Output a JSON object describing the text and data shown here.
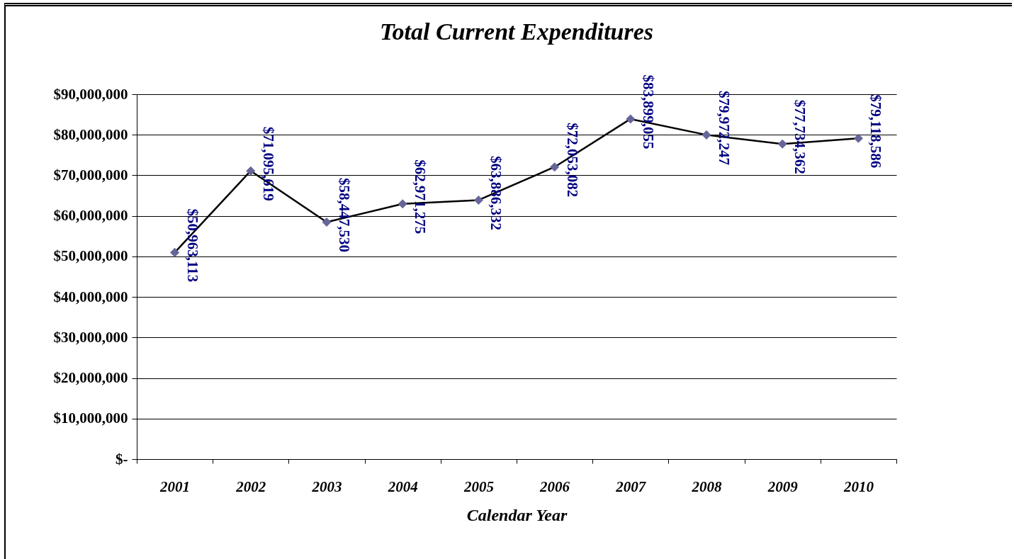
{
  "chart_data": {
    "type": "line",
    "title": "Total Current Expenditures",
    "xlabel": "Calendar Year",
    "categories": [
      "2001",
      "2002",
      "2003",
      "2004",
      "2005",
      "2006",
      "2007",
      "2008",
      "2009",
      "2010"
    ],
    "series": [
      {
        "color": "#000000",
        "colors": [
          "#666699",
          "#666699",
          "#666699",
          "#666699",
          "#666699",
          "#666699",
          "#666699",
          "#666699",
          "#666699",
          "#666699"
        ],
        "values": [
          50963113,
          71095619,
          58447530,
          62971275,
          63886332,
          72053082,
          83899055,
          79972247,
          77734362,
          79118586
        ],
        "value_labels": [
          "$50,963,113",
          "$71,095,619",
          "$58,447,530",
          "$62,971,275",
          "$63,886,332",
          "$72,053,082",
          "$83,899,055",
          "$79,972,247",
          "$77,734,362",
          "$79,118,586"
        ]
      }
    ],
    "ylim": [
      0,
      90000000
    ],
    "yticks": [
      {
        "value": 0,
        "label": "$-"
      },
      {
        "value": 10000000,
        "label": "$10,000,000"
      },
      {
        "value": 20000000,
        "label": "$20,000,000"
      },
      {
        "value": 30000000,
        "label": "$30,000,000"
      },
      {
        "value": 40000000,
        "label": "$40,000,000"
      },
      {
        "value": 50000000,
        "label": "$50,000,000"
      },
      {
        "value": 60000000,
        "label": "$60,000,000"
      },
      {
        "value": 70000000,
        "label": "$70,000,000"
      },
      {
        "value": 80000000,
        "label": "$80,000,000"
      },
      {
        "value": 90000000,
        "label": "$90,000,000"
      }
    ],
    "grid": "y",
    "marker": "diamond",
    "line_style": "solid"
  }
}
